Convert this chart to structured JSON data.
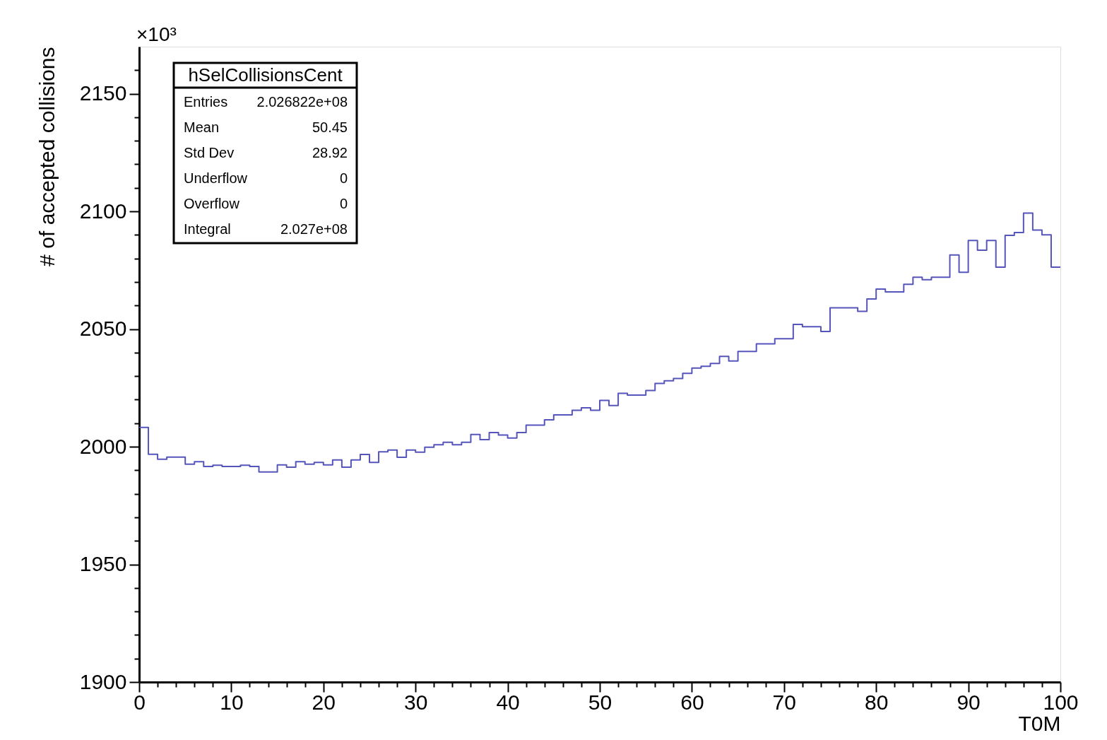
{
  "chart_data": {
    "type": "histogram",
    "xlabel": "T0M",
    "ylabel": "# of accepted collisions",
    "annotations": [
      "×10³",
      "hSelCollisionsCent",
      "Entries",
      "2.026822e+08",
      "Mean",
      "50.45",
      "Std Dev",
      "28.92",
      "Underflow",
      "0",
      "Overflow",
      "0",
      "Integral",
      "2.027e+08"
    ],
    "bins": [
      0,
      1,
      2,
      3,
      4,
      5,
      6,
      7,
      8,
      9,
      10,
      11,
      12,
      13,
      14,
      15,
      16,
      17,
      18,
      19,
      20,
      21,
      22,
      23,
      24,
      25,
      26,
      27,
      28,
      29,
      30,
      31,
      32,
      33,
      34,
      35,
      36,
      37,
      38,
      39,
      40,
      41,
      42,
      43,
      44,
      45,
      46,
      47,
      48,
      49,
      50,
      51,
      52,
      53,
      54,
      55,
      56,
      57,
      58,
      59,
      60,
      61,
      62,
      63,
      64,
      65,
      66,
      67,
      68,
      69,
      70,
      71,
      72,
      73,
      74,
      75,
      76,
      77,
      78,
      79,
      80,
      81,
      82,
      83,
      84,
      85,
      86,
      87,
      88,
      89,
      90,
      91,
      92,
      93,
      94,
      95,
      96,
      97,
      98,
      99,
      100
    ],
    "values": [
      2008.2,
      1996.8,
      1994.7,
      1995.6,
      1995.6,
      1992.6,
      1993.6,
      1991.6,
      1992.1,
      1991.6,
      1991.6,
      1992.1,
      1991.6,
      1989.3,
      1989.3,
      1992.3,
      1991.3,
      1993.6,
      1992.6,
      1993.3,
      1992.3,
      1994.4,
      1991.3,
      1994.4,
      1996.7,
      1993.3,
      1997.8,
      1998.6,
      1995.5,
      1998.6,
      1997.7,
      1999.8,
      2000.8,
      2001.9,
      2000.8,
      2001.9,
      2005.2,
      2003.0,
      2006.0,
      2005.0,
      2003.7,
      2006.0,
      2009.2,
      2009.2,
      2011.4,
      2013.5,
      2013.5,
      2015.5,
      2016.5,
      2015.5,
      2019.7,
      2017.5,
      2022.7,
      2021.9,
      2021.9,
      2023.9,
      2026.9,
      2028.0,
      2029.0,
      2031.2,
      2033.4,
      2034.2,
      2035.4,
      2038.4,
      2036.4,
      2040.5,
      2040.5,
      2043.7,
      2043.7,
      2045.9,
      2045.9,
      2052.0,
      2051.0,
      2051.0,
      2049.0,
      2059.0,
      2059.0,
      2059.0,
      2057.5,
      2062.8,
      2067.0,
      2065.8,
      2065.8,
      2069.0,
      2072.0,
      2071.0,
      2072.0,
      2072.0,
      2081.5,
      2074.1,
      2087.6,
      2083.5,
      2087.6,
      2076.3,
      2089.8,
      2091.0,
      2099.3,
      2092.1,
      2090.0,
      2076.3
    ],
    "color": "#5555bb",
    "xlim": [
      0,
      100
    ],
    "ylim": [
      1900,
      2170
    ],
    "xticks": [
      0,
      {
        "value": 2,
        "label": null
      },
      {
        "value": 4,
        "label": null
      },
      {
        "value": 6,
        "label": null
      },
      {
        "value": 8,
        "label": null
      },
      10,
      {
        "value": 12,
        "label": null
      },
      {
        "value": 14,
        "label": null
      },
      {
        "value": 16,
        "label": null
      },
      {
        "value": 18,
        "label": null
      },
      20,
      {
        "value": 22,
        "label": null
      },
      {
        "value": 24,
        "label": null
      },
      {
        "value": 26,
        "label": null
      },
      {
        "value": 28,
        "label": null
      },
      30,
      {
        "value": 32,
        "label": null
      },
      {
        "value": 34,
        "label": null
      },
      {
        "value": 36,
        "label": null
      },
      {
        "value": 38,
        "label": null
      },
      40,
      {
        "value": 42,
        "label": null
      },
      {
        "value": 44,
        "label": null
      },
      {
        "value": 46,
        "label": null
      },
      {
        "value": 48,
        "label": null
      },
      50,
      {
        "value": 52,
        "label": null
      },
      {
        "value": 54,
        "label": null
      },
      {
        "value": 56,
        "label": null
      },
      {
        "value": 58,
        "label": null
      },
      60,
      {
        "value": 62,
        "label": null
      },
      {
        "value": 64,
        "label": null
      },
      {
        "value": 66,
        "label": null
      },
      {
        "value": 68,
        "label": null
      },
      70,
      {
        "value": 72,
        "label": null
      },
      {
        "value": 74,
        "label": null
      },
      {
        "value": 76,
        "label": null
      },
      {
        "value": 78,
        "label": null
      },
      80,
      {
        "value": 82,
        "label": null
      },
      {
        "value": 84,
        "label": null
      },
      {
        "value": 86,
        "label": null
      },
      {
        "value": 88,
        "label": null
      },
      90,
      {
        "value": 92,
        "label": null
      },
      {
        "value": 94,
        "label": null
      },
      {
        "value": 96,
        "label": null
      },
      {
        "value": 98,
        "label": null
      },
      100
    ],
    "yticks": [
      1900,
      {
        "value": 1910,
        "label": null
      },
      {
        "value": 1920,
        "label": null
      },
      {
        "value": 1930,
        "label": null
      },
      {
        "value": 1940,
        "label": null
      },
      1950,
      {
        "value": 1960,
        "label": null
      },
      {
        "value": 1970,
        "label": null
      },
      {
        "value": 1980,
        "label": null
      },
      {
        "value": 1990,
        "label": null
      },
      2000,
      {
        "value": 2010,
        "label": null
      },
      {
        "value": 2020,
        "label": null
      },
      {
        "value": 2030,
        "label": null
      },
      {
        "value": 2040,
        "label": null
      },
      2050,
      {
        "value": 2060,
        "label": null
      },
      {
        "value": 2070,
        "label": null
      },
      {
        "value": 2080,
        "label": null
      },
      {
        "value": 2090,
        "label": null
      },
      2100,
      {
        "value": 2110,
        "label": null
      },
      {
        "value": 2120,
        "label": null
      },
      {
        "value": 2130,
        "label": null
      },
      {
        "value": 2140,
        "label": null
      },
      2150,
      {
        "value": 2160,
        "label": null
      }
    ],
    "grid": false
  }
}
